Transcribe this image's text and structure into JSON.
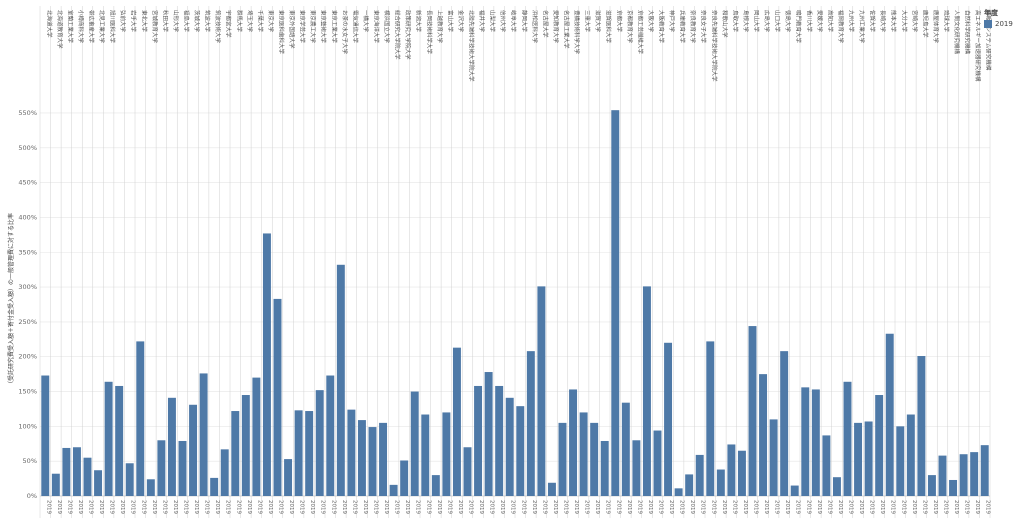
{
  "legend": {
    "title": "年度",
    "items": [
      {
        "label": "2019",
        "color": "#4e79a7"
      }
    ]
  },
  "colors": {
    "bar": "#4e79a7",
    "grid": "#e6e6e6",
    "divider": "#d0d0d0",
    "axis_text": "#666666"
  },
  "chart_data": {
    "type": "bar",
    "ylabel": "（受託研究費受入額＋寄付金受入額）の一般管理費に対する比率",
    "ylim": [
      0,
      560
    ],
    "yticks": [
      "0%",
      "50%",
      "100%",
      "150%",
      "200%",
      "250%",
      "300%",
      "350%",
      "400%",
      "450%",
      "500%",
      "550%"
    ],
    "ytick_values": [
      0,
      50,
      100,
      150,
      200,
      250,
      300,
      350,
      400,
      450,
      500,
      550
    ],
    "grid": true,
    "legend_position": "top-right",
    "series": [
      {
        "name": "2019"
      }
    ],
    "categories": [
      "北海道大学",
      "北海道教育大学",
      "室蘭工業大学",
      "小樽商科大学",
      "帯広畜産大学",
      "北見工業大学",
      "旭川医科大学",
      "弘前大学",
      "岩手大学",
      "東北大学",
      "宮城教育大学",
      "秋田大学",
      "山形大学",
      "福島大学",
      "茨城大学",
      "筑波大学",
      "筑波技術大学",
      "宇都宮大学",
      "群馬大学",
      "埼玉大学",
      "千葉大学",
      "東京大学",
      "東京医科歯科大学",
      "東京外国語大学",
      "東京学芸大学",
      "東京農工大学",
      "東京藝術大学",
      "東京工業大学",
      "お茶の水女子大学",
      "電気通信大学",
      "一橋大学",
      "東京海洋大学",
      "横浜国立大学",
      "総合研究大学院大学",
      "政策研究大学院大学",
      "新潟大学",
      "長岡技術科学大学",
      "上越教育大学",
      "富山大学",
      "金沢大学",
      "北陸先端科学技術大学院大学",
      "福井大学",
      "山梨大学",
      "信州大学",
      "岐阜大学",
      "静岡大学",
      "浜松医科大学",
      "名古屋大学",
      "愛知教育大学",
      "名古屋工業大学",
      "豊橋技術科学大学",
      "三重大学",
      "滋賀大学",
      "滋賀医科大学",
      "京都大学",
      "京都教育大学",
      "京都工芸繊維大学",
      "大阪大学",
      "大阪教育大学",
      "神戸大学",
      "兵庫教育大学",
      "奈良教育大学",
      "奈良女子大学",
      "奈良先端科学技術大学院大学",
      "和歌山大学",
      "鳥取大学",
      "島根大学",
      "岡山大学",
      "広島大学",
      "山口大学",
      "徳島大学",
      "鳴門教育大学",
      "香川大学",
      "愛媛大学",
      "高知大学",
      "福岡教育大学",
      "九州大学",
      "九州工業大学",
      "佐賀大学",
      "長崎大学",
      "熊本大学",
      "大分大学",
      "宮崎大学",
      "鹿児島大学",
      "鹿屋体育大学",
      "琉球大学",
      "人間文化研究機構",
      "自然科学研究機構",
      "高エネルギー加速器研究機構",
      "情報・システム研究機構"
    ],
    "x_tick_labels": [
      "2019",
      "2019",
      "2019",
      "2019",
      "2019",
      "2019",
      "2019",
      "2019",
      "2019",
      "2019",
      "2019",
      "2019",
      "2019",
      "2019",
      "2019",
      "2019",
      "2019",
      "2019",
      "2019",
      "2019",
      "2019",
      "2019",
      "2019",
      "2019",
      "2019",
      "2019",
      "2019",
      "2019",
      "2019",
      "2019",
      "2019",
      "2019",
      "2019",
      "2019",
      "2019",
      "2019",
      "2019",
      "2019",
      "2019",
      "2019",
      "2019",
      "2019",
      "2019",
      "2019",
      "2019",
      "2019",
      "2019",
      "2019",
      "2019",
      "2019",
      "2019",
      "2019",
      "2019",
      "2019",
      "2019",
      "2019",
      "2019",
      "2019",
      "2019",
      "2019",
      "2019",
      "2019",
      "2019",
      "2019",
      "2019",
      "2019",
      "2019",
      "2019",
      "2019",
      "2019",
      "2019",
      "2019",
      "2019",
      "2019",
      "2019",
      "2019",
      "2019",
      "2019",
      "2019",
      "2019",
      "2019",
      "2019",
      "2019",
      "2019",
      "2019",
      "2019",
      "2019",
      "2019",
      "2019",
      "2019"
    ],
    "values": [
      173,
      32,
      69,
      70,
      55,
      37,
      164,
      158,
      47,
      222,
      24,
      80,
      141,
      79,
      131,
      176,
      26,
      67,
      122,
      145,
      170,
      377,
      283,
      53,
      123,
      122,
      152,
      173,
      332,
      124,
      109,
      99,
      105,
      16,
      51,
      150,
      117,
      30,
      120,
      213,
      70,
      158,
      178,
      158,
      141,
      129,
      208,
      301,
      19,
      105,
      153,
      120,
      105,
      79,
      554,
      134,
      80,
      301,
      94,
      220,
      11,
      31,
      59,
      222,
      38,
      74,
      65,
      244,
      175,
      110,
      208,
      15,
      156,
      153,
      87,
      27,
      164,
      105,
      107,
      145,
      233,
      100,
      117,
      201,
      30,
      58,
      23,
      60,
      63,
      73
    ]
  }
}
